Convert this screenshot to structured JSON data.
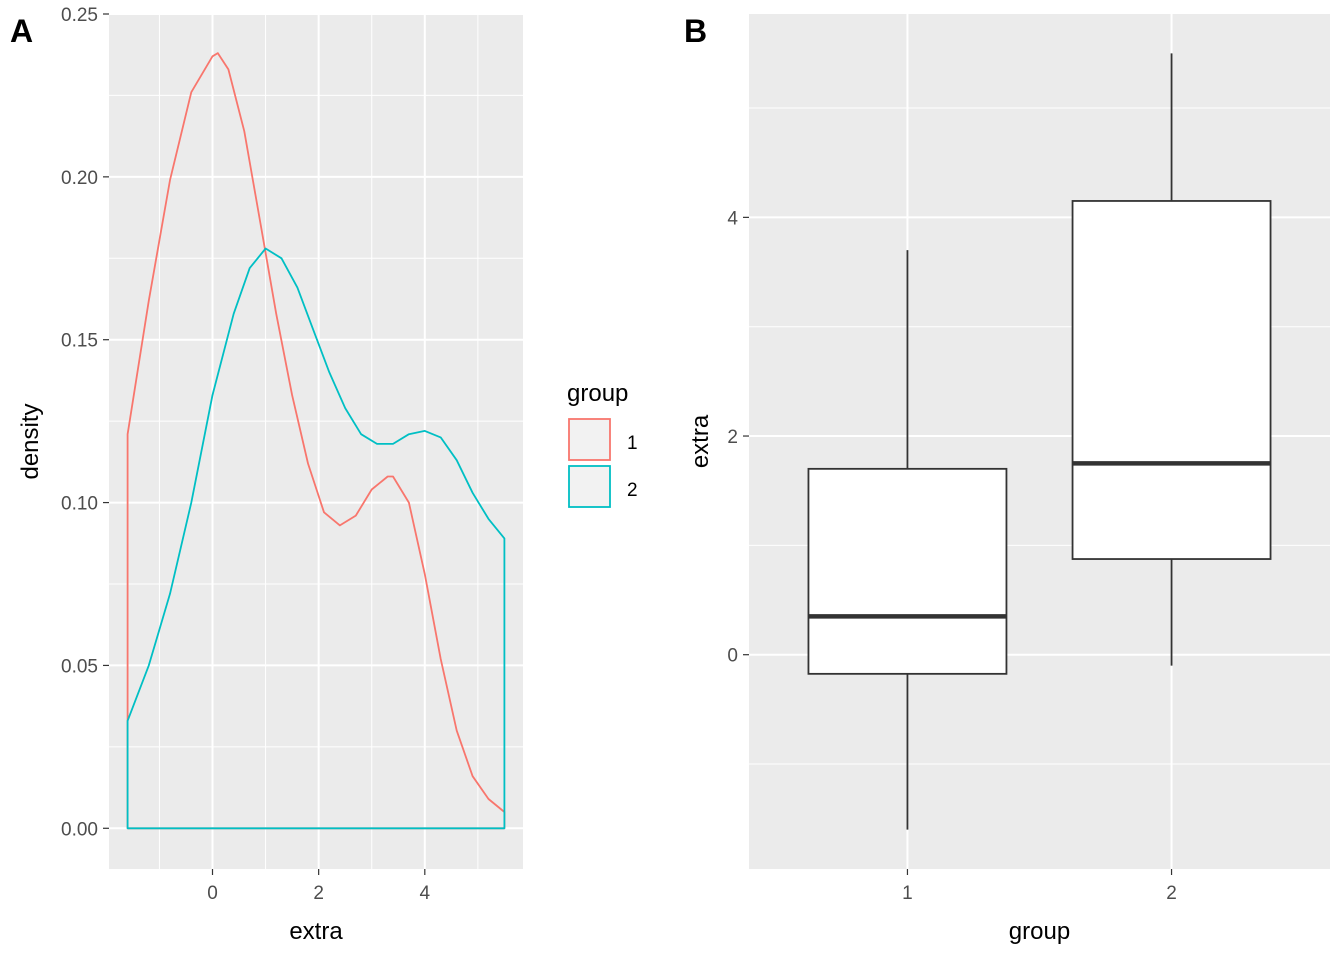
{
  "panels": {
    "a_tag": "A",
    "b_tag": "B"
  },
  "legend": {
    "title": "group",
    "items": [
      {
        "label": "1",
        "color": "#F8766D"
      },
      {
        "label": "2",
        "color": "#00BFC4"
      }
    ]
  },
  "colors": {
    "panel_bg": "#EBEBEB",
    "grid": "#FFFFFF",
    "box_line": "#333333",
    "group1": "#F8766D",
    "group2": "#00BFC4"
  },
  "chart_data": [
    {
      "type": "line",
      "chart_kind": "density",
      "panel": "A",
      "xlabel": "extra",
      "ylabel": "density",
      "xlim": [
        -1.95,
        5.85
      ],
      "ylim": [
        -0.0125,
        0.25
      ],
      "x_ticks": [
        0,
        2,
        4
      ],
      "y_ticks": [
        0.0,
        0.05,
        0.1,
        0.15,
        0.2,
        0.25
      ],
      "y_tick_labels": [
        "0.00",
        "0.05",
        "0.10",
        "0.15",
        "0.20",
        "0.25"
      ],
      "grid": true,
      "legend_position": "right",
      "series": [
        {
          "name": "1",
          "color": "#F8766D",
          "x": [
            -1.6,
            -1.2,
            -0.8,
            -0.4,
            0.0,
            0.1,
            0.3,
            0.6,
            0.9,
            1.2,
            1.5,
            1.8,
            2.1,
            2.4,
            2.7,
            3.0,
            3.3,
            3.4,
            3.7,
            4.0,
            4.3,
            4.6,
            4.9,
            5.2,
            5.5
          ],
          "y": [
            0.121,
            0.162,
            0.199,
            0.226,
            0.237,
            0.238,
            0.233,
            0.214,
            0.186,
            0.158,
            0.133,
            0.112,
            0.097,
            0.093,
            0.096,
            0.104,
            0.108,
            0.108,
            0.1,
            0.078,
            0.052,
            0.03,
            0.016,
            0.009,
            0.005
          ]
        },
        {
          "name": "2",
          "color": "#00BFC4",
          "x": [
            -1.6,
            -1.2,
            -0.8,
            -0.4,
            0.0,
            0.4,
            0.7,
            1.0,
            1.3,
            1.6,
            1.9,
            2.2,
            2.5,
            2.8,
            3.1,
            3.4,
            3.7,
            4.0,
            4.3,
            4.6,
            4.9,
            5.2,
            5.5
          ],
          "y": [
            0.033,
            0.05,
            0.072,
            0.1,
            0.133,
            0.158,
            0.172,
            0.178,
            0.175,
            0.166,
            0.153,
            0.14,
            0.129,
            0.121,
            0.118,
            0.118,
            0.121,
            0.122,
            0.12,
            0.113,
            0.103,
            0.095,
            0.089
          ]
        }
      ]
    },
    {
      "type": "box",
      "panel": "B",
      "xlabel": "group",
      "ylabel": "extra",
      "categories": [
        "1",
        "2"
      ],
      "ylim": [
        -1.96,
        5.86
      ],
      "y_ticks": [
        0,
        2,
        4
      ],
      "grid": true,
      "boxes": [
        {
          "group": "1",
          "whisker_low": -1.6,
          "q1": -0.175,
          "median": 0.35,
          "q3": 1.7,
          "whisker_high": 3.7
        },
        {
          "group": "2",
          "whisker_low": -0.1,
          "q1": 0.875,
          "median": 1.75,
          "q3": 4.15,
          "whisker_high": 5.5
        }
      ]
    }
  ]
}
